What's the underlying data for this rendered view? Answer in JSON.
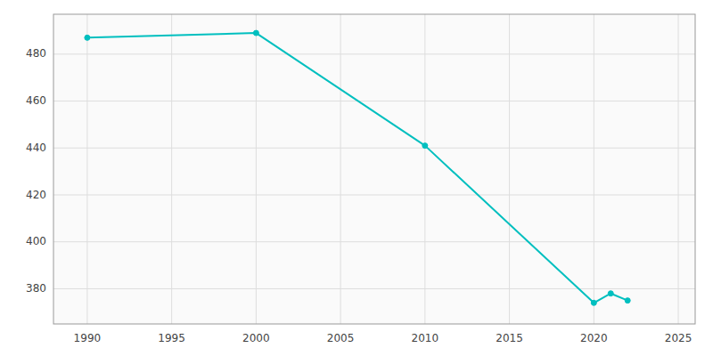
{
  "chart_data": {
    "type": "line",
    "x": [
      1990,
      2000,
      2010,
      2020,
      2021,
      2022
    ],
    "values": [
      487,
      489,
      441,
      374,
      378,
      375
    ],
    "color": "#00BFBF",
    "marker": "circle",
    "xlim": [
      1988,
      2026
    ],
    "ylim": [
      365,
      497
    ],
    "xticks": [
      1990,
      1995,
      2000,
      2005,
      2010,
      2015,
      2020,
      2025
    ],
    "yticks": [
      380,
      400,
      420,
      440,
      460,
      480
    ],
    "grid": true
  }
}
